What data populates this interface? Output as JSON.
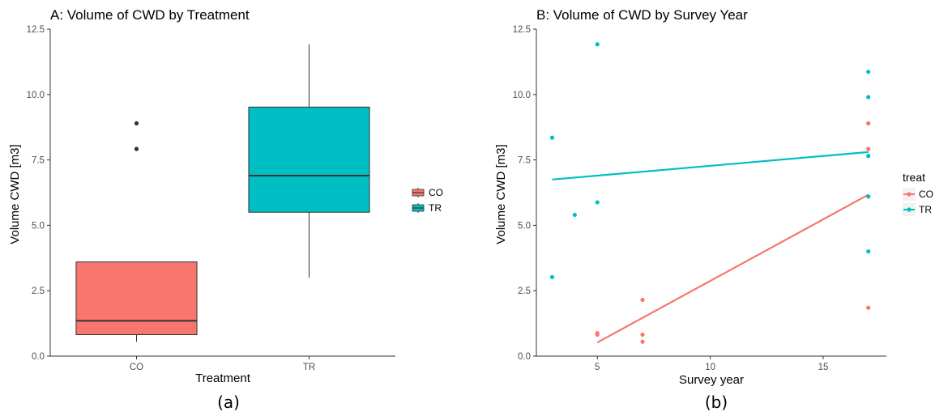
{
  "panels": [
    {
      "id": "a",
      "caption": "(a)",
      "legend_title": ""
    },
    {
      "id": "b",
      "caption": "(b)",
      "legend_title": "treat"
    }
  ],
  "colors": {
    "CO": "#F8766D",
    "TR": "#00BFC4",
    "outlier": "#333333",
    "axis": "#333333"
  },
  "chart_data": [
    {
      "type": "box",
      "title": "A: Volume of CWD by Treatment",
      "xlabel": "Treatment",
      "ylabel": "Volume CWD [m3]",
      "ylim": [
        0,
        12.5
      ],
      "yticks": [
        0.0,
        2.5,
        5.0,
        7.5,
        10.0,
        12.5
      ],
      "ytick_labels": [
        "0.0",
        "2.5",
        "5.0",
        "7.5",
        "10.0",
        "12.5"
      ],
      "grid": false,
      "legend_position": "right",
      "categories": [
        "CO",
        "TR"
      ],
      "series": [
        {
          "name": "CO",
          "whisker_low": 0.55,
          "q1": 0.82,
          "median": 1.35,
          "q3": 3.6,
          "whisker_high": 3.6,
          "outliers": [
            7.92,
            8.9
          ]
        },
        {
          "name": "TR",
          "whisker_low": 3.0,
          "q1": 5.5,
          "median": 6.9,
          "q3": 9.52,
          "whisker_high": 11.92,
          "outliers": []
        }
      ]
    },
    {
      "type": "scatter",
      "title": "B: Volume of CWD by Survey Year",
      "xlabel": "Survey year",
      "ylabel": "Volume CWD [m3]",
      "xlim": [
        2.3,
        17.8
      ],
      "ylim": [
        0,
        12.5
      ],
      "xticks": [
        5,
        10,
        15
      ],
      "xtick_labels": [
        "5",
        "10",
        "15"
      ],
      "yticks": [
        0.0,
        2.5,
        5.0,
        7.5,
        10.0,
        12.5
      ],
      "ytick_labels": [
        "0.0",
        "2.5",
        "5.0",
        "7.5",
        "10.0",
        "12.5"
      ],
      "grid": false,
      "legend_position": "right",
      "series": [
        {
          "name": "CO",
          "points": [
            [
              5,
              0.82
            ],
            [
              5,
              0.88
            ],
            [
              7,
              2.15
            ],
            [
              7,
              0.82
            ],
            [
              7,
              0.55
            ],
            [
              17,
              8.9
            ],
            [
              17,
              7.92
            ],
            [
              17,
              1.85
            ]
          ],
          "trend": [
            [
              5,
              0.52
            ],
            [
              17,
              6.17
            ]
          ]
        },
        {
          "name": "TR",
          "points": [
            [
              3,
              8.35
            ],
            [
              3,
              3.02
            ],
            [
              4,
              5.4
            ],
            [
              5,
              11.92
            ],
            [
              5,
              5.88
            ],
            [
              17,
              10.87
            ],
            [
              17,
              9.9
            ],
            [
              17,
              7.65
            ],
            [
              17,
              6.1
            ],
            [
              17,
              4.0
            ]
          ],
          "trend": [
            [
              3,
              6.75
            ],
            [
              17,
              7.8
            ]
          ]
        }
      ]
    }
  ]
}
